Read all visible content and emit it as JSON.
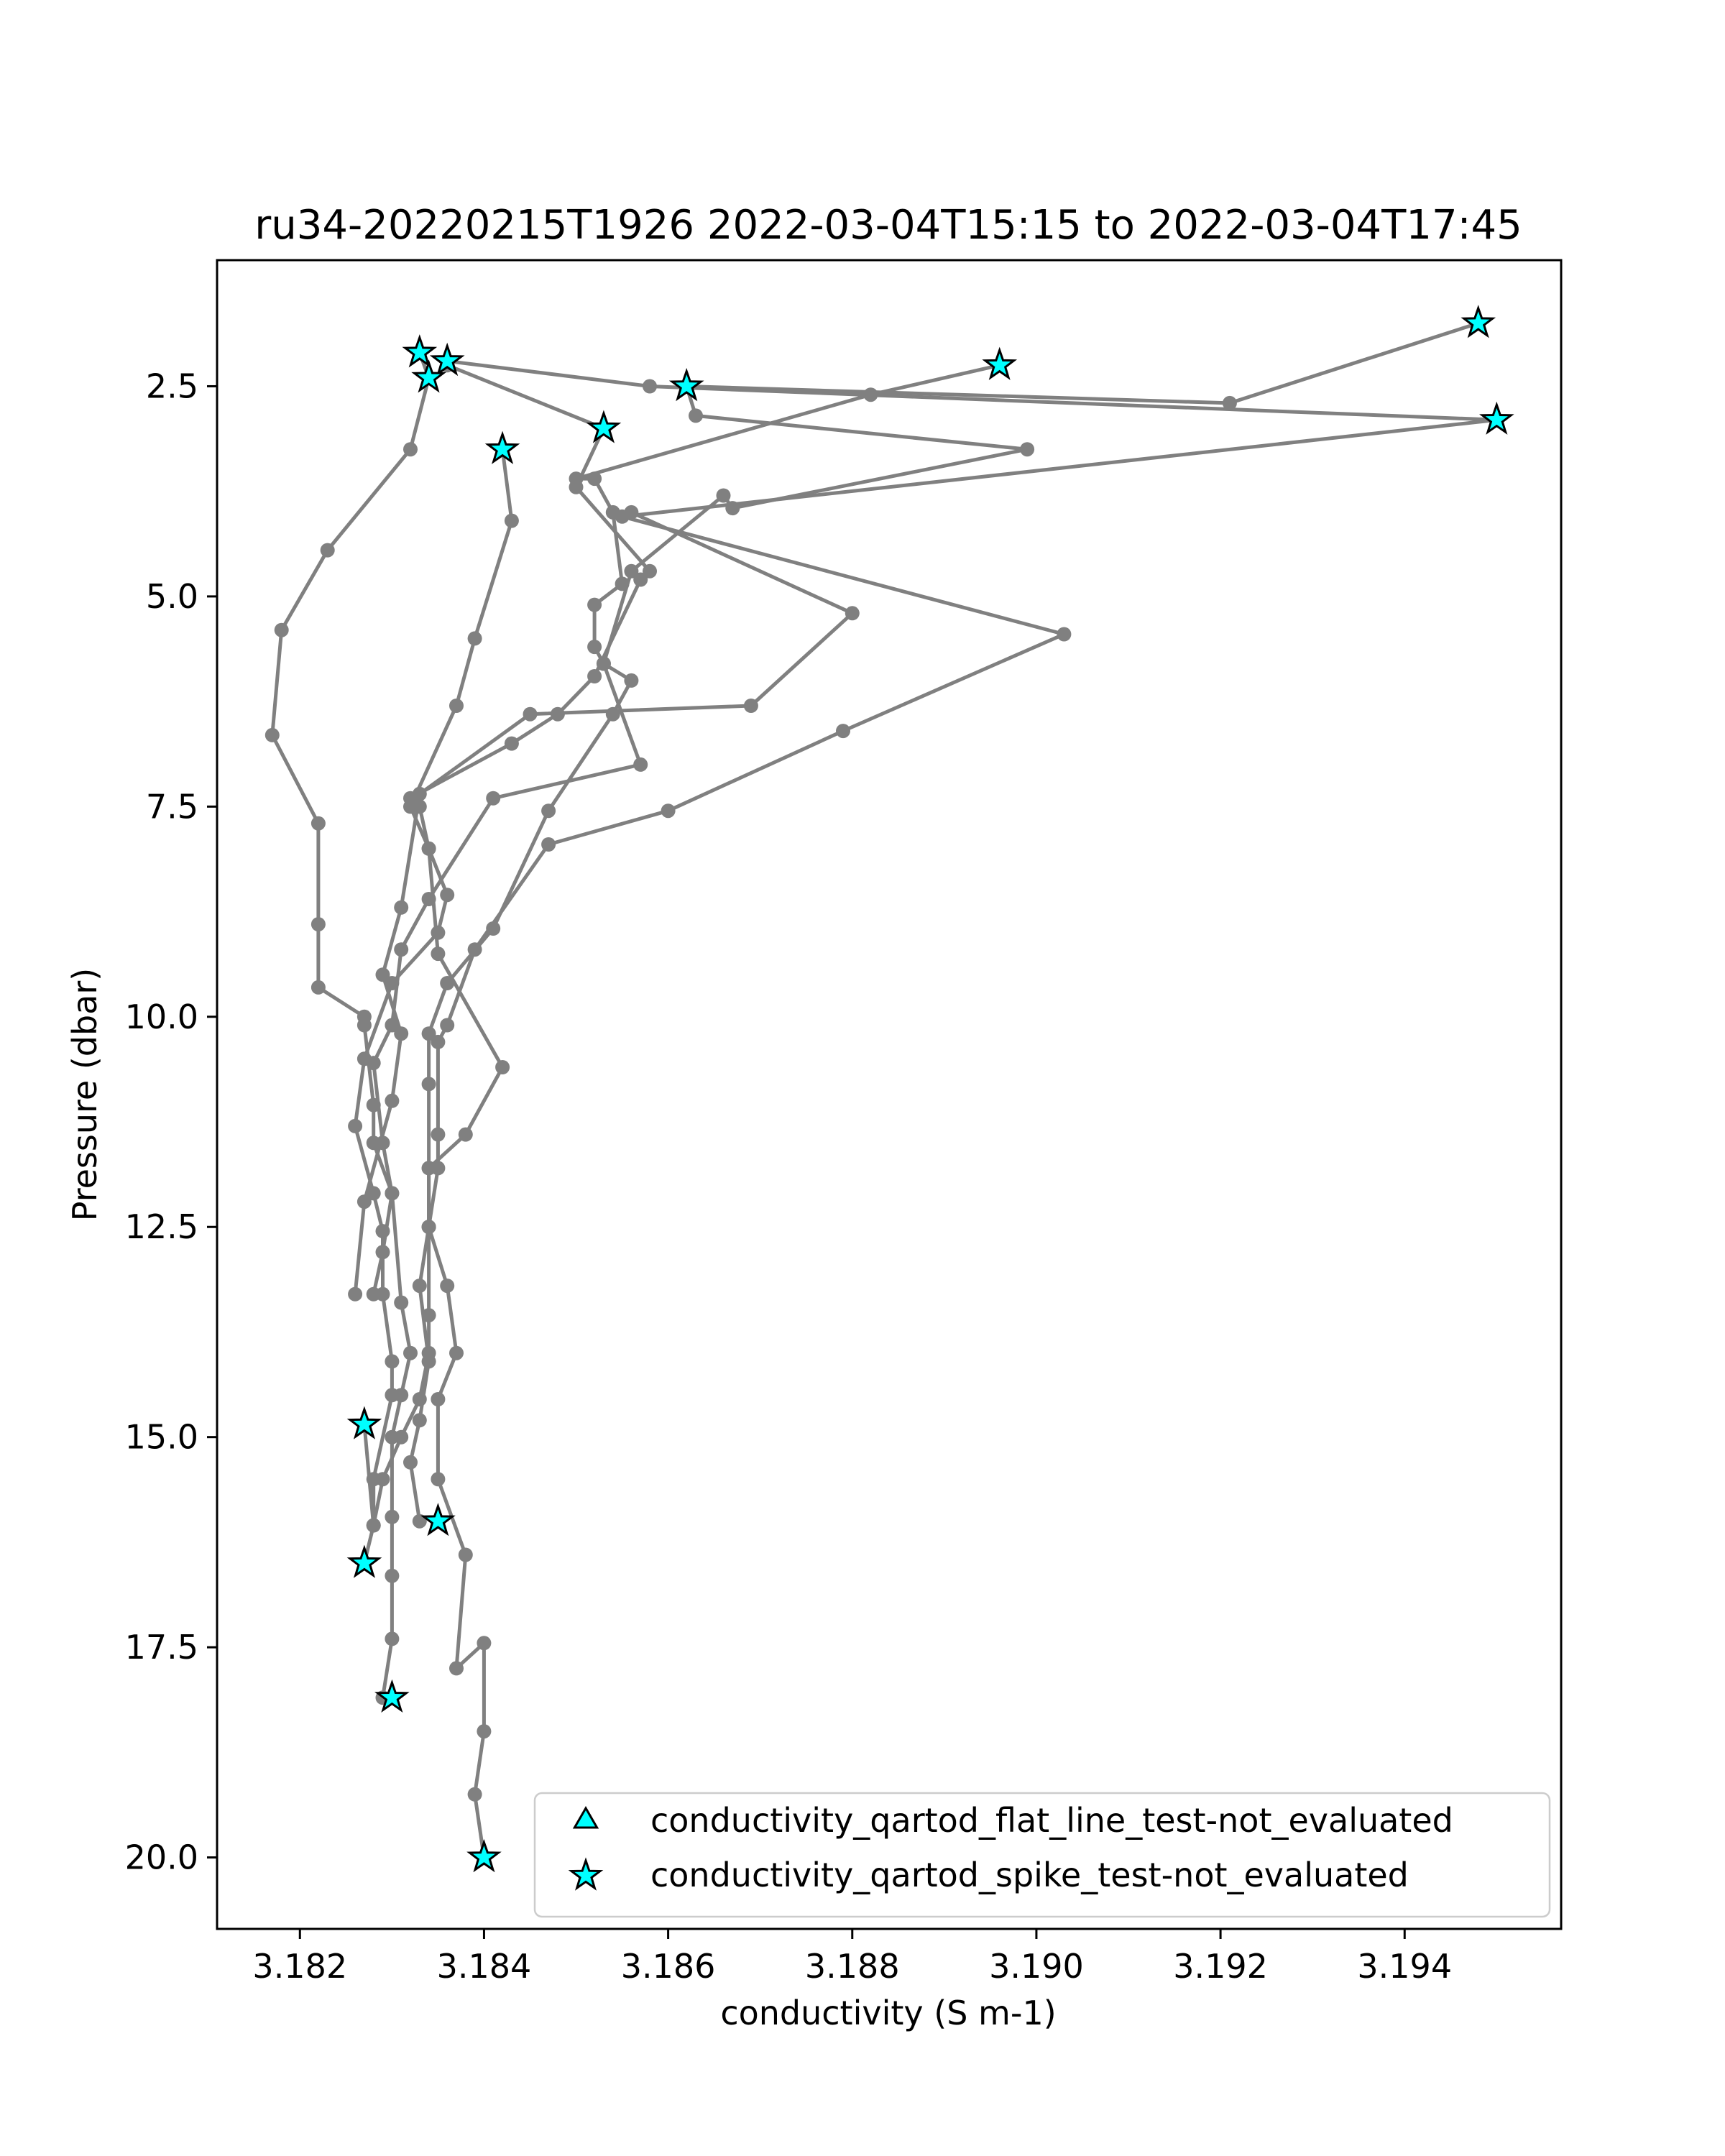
{
  "chart_data": {
    "type": "scatter",
    "title": "ru34-20220215T1926 2022-03-04T15:15 to 2022-03-04T17:45",
    "xlabel": "conductivity (S m-1)",
    "ylabel": "Pressure (dbar)",
    "xlim": [
      3.1811,
      3.1957
    ],
    "ylim": [
      20.85,
      1.0
    ],
    "y_inverted": true,
    "x_ticks": [
      3.182,
      3.184,
      3.186,
      3.188,
      3.19,
      3.192,
      3.194
    ],
    "x_tick_labels": [
      "3.182",
      "3.184",
      "3.186",
      "3.188",
      "3.190",
      "3.192",
      "3.194"
    ],
    "y_ticks": [
      2.5,
      5.0,
      7.5,
      10.0,
      12.5,
      15.0,
      17.5,
      20.0
    ],
    "y_tick_labels": [
      "2.5",
      "5.0",
      "7.5",
      "10.0",
      "12.5",
      "15.0",
      "17.5",
      "20.0"
    ],
    "grid": false,
    "legend_position": "lower-right",
    "colors": {
      "profile_line": "#808080",
      "flag_fill": "#00ffff",
      "flag_edge": "#000000"
    },
    "series": [
      {
        "points": [
          [
            3.184,
            20.0
          ],
          [
            3.1839,
            19.25
          ],
          [
            3.184,
            18.5
          ],
          [
            3.184,
            17.45
          ],
          [
            3.1837,
            17.75
          ],
          [
            3.1838,
            16.4
          ],
          [
            3.1835,
            15.5
          ],
          [
            3.1835,
            14.55
          ],
          [
            3.1837,
            14.0
          ],
          [
            3.1836,
            13.2
          ],
          [
            3.1834,
            12.5
          ],
          [
            3.1834,
            11.8
          ],
          [
            3.1838,
            11.4
          ],
          [
            3.1842,
            10.6
          ],
          [
            3.1835,
            9.25
          ],
          [
            3.1834,
            8.0
          ],
          [
            3.1833,
            7.5
          ],
          [
            3.1832,
            7.4
          ],
          [
            3.1843,
            6.75
          ],
          [
            3.1848,
            6.4
          ],
          [
            3.1852,
            5.95
          ],
          [
            3.1857,
            4.8
          ],
          [
            3.1858,
            4.7
          ],
          [
            3.185,
            3.7
          ],
          [
            3.1853,
            3.0
          ],
          [
            3.1836,
            2.25
          ]
        ]
      },
      {
        "points": [
          [
            3.1829,
            18.1
          ],
          [
            3.183,
            17.4
          ],
          [
            3.183,
            16.65
          ],
          [
            3.183,
            15.95
          ],
          [
            3.183,
            15.0
          ],
          [
            3.1831,
            14.5
          ],
          [
            3.1832,
            14.0
          ],
          [
            3.1831,
            13.4
          ],
          [
            3.183,
            12.1
          ],
          [
            3.1828,
            11.5
          ],
          [
            3.1828,
            11.05
          ],
          [
            3.1827,
            10.1
          ],
          [
            3.1827,
            10.0
          ],
          [
            3.1822,
            9.65
          ],
          [
            3.1822,
            8.9
          ],
          [
            3.1822,
            7.7
          ],
          [
            3.1817,
            6.65
          ],
          [
            3.1818,
            5.4
          ],
          [
            3.1823,
            4.45
          ],
          [
            3.1832,
            3.25
          ],
          [
            3.1834,
            2.4
          ],
          [
            3.1833,
            2.1
          ]
        ]
      },
      {
        "points": [
          [
            3.1827,
            16.5
          ],
          [
            3.1828,
            16.05
          ],
          [
            3.1829,
            15.5
          ],
          [
            3.1831,
            15.0
          ],
          [
            3.1833,
            14.55
          ],
          [
            3.1834,
            14.0
          ],
          [
            3.1834,
            13.55
          ],
          [
            3.1834,
            12.5
          ],
          [
            3.1834,
            11.8
          ],
          [
            3.1834,
            10.8
          ],
          [
            3.1834,
            10.2
          ],
          [
            3.1836,
            9.6
          ],
          [
            3.1841,
            8.95
          ],
          [
            3.1847,
            7.55
          ],
          [
            3.1854,
            6.4
          ],
          [
            3.1856,
            6.0
          ],
          [
            3.1853,
            5.8
          ],
          [
            3.1852,
            5.6
          ],
          [
            3.1852,
            5.1
          ],
          [
            3.1855,
            4.85
          ],
          [
            3.1854,
            4.0
          ],
          [
            3.1852,
            3.6
          ],
          [
            3.185,
            3.6
          ],
          [
            3.1882,
            2.6
          ],
          [
            3.1896,
            2.25
          ]
        ]
      },
      {
        "points": [
          [
            3.1827,
            14.85
          ],
          [
            3.1828,
            16.05
          ],
          [
            3.1828,
            15.5
          ],
          [
            3.183,
            14.5
          ],
          [
            3.183,
            14.1
          ],
          [
            3.1829,
            13.3
          ],
          [
            3.1829,
            12.55
          ],
          [
            3.1828,
            12.1
          ],
          [
            3.1826,
            11.3
          ],
          [
            3.1827,
            10.5
          ],
          [
            3.183,
            9.6
          ],
          [
            3.1835,
            9.0
          ],
          [
            3.1836,
            8.55
          ],
          [
            3.1834,
            8.0
          ],
          [
            3.1832,
            7.5
          ],
          [
            3.1837,
            6.3
          ],
          [
            3.1839,
            5.5
          ],
          [
            3.1843,
            4.1
          ],
          [
            3.1842,
            3.25
          ]
        ]
      },
      {
        "points": [
          [
            3.1833,
            16.0
          ],
          [
            3.1832,
            15.3
          ],
          [
            3.1833,
            14.8
          ],
          [
            3.1834,
            14.1
          ],
          [
            3.1833,
            13.2
          ],
          [
            3.1834,
            12.5
          ],
          [
            3.1835,
            11.8
          ],
          [
            3.1835,
            11.4
          ],
          [
            3.1835,
            10.3
          ],
          [
            3.1836,
            10.1
          ],
          [
            3.1839,
            9.2
          ],
          [
            3.1847,
            7.95
          ],
          [
            3.186,
            7.55
          ],
          [
            3.1879,
            6.6
          ],
          [
            3.1903,
            5.45
          ],
          [
            3.1855,
            4.05
          ],
          [
            3.195,
            2.9
          ],
          [
            3.1858,
            2.5
          ],
          [
            3.1836,
            2.2
          ]
        ]
      },
      {
        "points": [
          [
            3.1828,
            13.3
          ],
          [
            3.1829,
            12.8
          ],
          [
            3.183,
            12.1
          ],
          [
            3.1829,
            11.5
          ],
          [
            3.1828,
            10.55
          ],
          [
            3.183,
            10.1
          ],
          [
            3.1831,
            9.2
          ],
          [
            3.1834,
            8.6
          ],
          [
            3.1841,
            7.4
          ],
          [
            3.1857,
            7.0
          ],
          [
            3.1853,
            5.8
          ],
          [
            3.1856,
            4.7
          ],
          [
            3.1866,
            3.8
          ],
          [
            3.1867,
            3.95
          ],
          [
            3.1899,
            3.25
          ],
          [
            3.1863,
            2.85
          ],
          [
            3.1862,
            2.5
          ],
          [
            3.1921,
            2.7
          ],
          [
            3.1948,
            1.75
          ]
        ]
      },
      {
        "points": [
          [
            3.1826,
            13.3
          ],
          [
            3.1827,
            12.2
          ],
          [
            3.183,
            11.0
          ],
          [
            3.1831,
            10.2
          ],
          [
            3.1829,
            9.5
          ],
          [
            3.1831,
            8.7
          ],
          [
            3.1833,
            7.35
          ],
          [
            3.1845,
            6.4
          ],
          [
            3.1869,
            6.3
          ],
          [
            3.188,
            5.2
          ],
          [
            3.1856,
            4.0
          ]
        ]
      }
    ],
    "flags": [
      {
        "name": "conductivity_qartod_flat_line_test-not_evaluated",
        "marker": "triangle",
        "points": []
      },
      {
        "name": "conductivity_qartod_spike_test-not_evaluated",
        "marker": "star",
        "points": [
          [
            3.1833,
            2.1
          ],
          [
            3.1836,
            2.2
          ],
          [
            3.1834,
            2.4
          ],
          [
            3.1842,
            3.25
          ],
          [
            3.1853,
            3.0
          ],
          [
            3.1862,
            2.5
          ],
          [
            3.1896,
            2.25
          ],
          [
            3.1948,
            1.75
          ],
          [
            3.195,
            2.9
          ],
          [
            3.1827,
            14.85
          ],
          [
            3.1835,
            16.0
          ],
          [
            3.1827,
            16.5
          ],
          [
            3.183,
            18.1
          ],
          [
            3.184,
            20.0
          ]
        ]
      }
    ]
  }
}
